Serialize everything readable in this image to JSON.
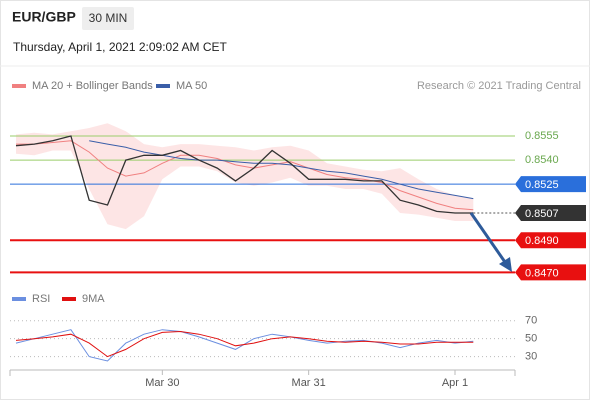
{
  "header": {
    "symbol": "EUR/GBP",
    "interval": "30 MIN",
    "timestamp": "Thursday, April 1, 2021 2:09:02 AM CET",
    "copyright": "Research © 2021 Trading Central"
  },
  "chart_data": [
    {
      "type": "line",
      "x": [
        0,
        0.125,
        0.25,
        0.375,
        0.5,
        0.625,
        0.75,
        0.875,
        1,
        1.125,
        1.25,
        1.375,
        1.5,
        1.625,
        1.75,
        1.875,
        2,
        2.125,
        2.25,
        2.375,
        2.5,
        2.625,
        2.75,
        2.875,
        3,
        3.125
      ],
      "xlim": [
        -0.041,
        3.41
      ],
      "ylim": [
        0.8459,
        0.8565
      ],
      "price": {
        "color": "#333333",
        "values": [
          0.8549,
          0.855,
          0.8552,
          0.8555,
          0.8515,
          0.8512,
          0.854,
          0.8543,
          0.8543,
          0.8546,
          0.854,
          0.8535,
          0.8527,
          0.8535,
          0.8546,
          0.8538,
          0.8528,
          0.8528,
          0.8528,
          0.8527,
          0.8527,
          0.8515,
          0.8512,
          0.8508,
          0.8507,
          0.8507
        ]
      },
      "series": [
        {
          "name": "MA 20 + Bollinger Bands",
          "color": "#f08080",
          "band_color": "#fde0e0",
          "values": [
            0.855,
            0.855,
            0.8551,
            0.8552,
            0.8545,
            0.8535,
            0.853,
            0.8532,
            0.8538,
            0.8543,
            0.8543,
            0.8541,
            0.8537,
            0.8535,
            0.8537,
            0.8539,
            0.8535,
            0.8531,
            0.8529,
            0.8528,
            0.8526,
            0.8521,
            0.8517,
            0.8513,
            0.851,
            0.8509
          ],
          "upper": [
            0.8556,
            0.8557,
            0.8556,
            0.8558,
            0.856,
            0.8563,
            0.8558,
            0.855,
            0.8548,
            0.855,
            0.855,
            0.8549,
            0.8548,
            0.8546,
            0.8548,
            0.8549,
            0.8546,
            0.8538,
            0.8536,
            0.8534,
            0.8533,
            0.8535,
            0.8528,
            0.8522,
            0.8518,
            0.8516
          ],
          "lower": [
            0.8544,
            0.8543,
            0.8546,
            0.8546,
            0.8522,
            0.85,
            0.8497,
            0.8505,
            0.8528,
            0.8536,
            0.8536,
            0.8533,
            0.8526,
            0.8524,
            0.8526,
            0.8529,
            0.8524,
            0.8524,
            0.8522,
            0.8522,
            0.8519,
            0.8507,
            0.8506,
            0.8504,
            0.8502,
            0.8502
          ]
        },
        {
          "name": "MA 50",
          "color": "#3a5ea8",
          "values": [
            null,
            null,
            null,
            null,
            0.8552,
            0.855,
            0.8548,
            0.8545,
            0.8543,
            0.8541,
            0.854,
            0.854,
            0.8539,
            0.8538,
            0.8538,
            0.8537,
            0.8535,
            0.8533,
            0.8532,
            0.853,
            0.8528,
            0.8525,
            0.8522,
            0.852,
            0.8518,
            0.8516
          ]
        }
      ],
      "levels": [
        {
          "value": 0.8555,
          "label": "0.8555",
          "color": "#9acd6a",
          "style": "text"
        },
        {
          "value": 0.854,
          "label": "0.8540",
          "color": "#9acd6a",
          "style": "text"
        },
        {
          "value": 0.8525,
          "label": "0.8525",
          "color": "#2a6fdb",
          "style": "badge"
        },
        {
          "value": 0.8507,
          "label": "0.8507",
          "color": "#333333",
          "style": "last"
        },
        {
          "value": 0.849,
          "label": "0.8490",
          "color": "#e81010",
          "style": "badge"
        },
        {
          "value": 0.847,
          "label": "0.8470",
          "color": "#e81010",
          "style": "badge"
        }
      ]
    },
    {
      "type": "line",
      "ylim": [
        15,
        82
      ],
      "yticks": [
        70,
        50,
        30
      ],
      "xticks": [
        {
          "value": 1,
          "label": "Mar 30"
        },
        {
          "value": 2,
          "label": "Mar 31"
        },
        {
          "value": 3,
          "label": "Apr 1"
        }
      ],
      "series": [
        {
          "name": "RSI",
          "color": "#6b8fe0",
          "values": [
            45,
            50,
            55,
            60,
            30,
            25,
            45,
            55,
            60,
            58,
            52,
            45,
            38,
            50,
            55,
            52,
            48,
            45,
            47,
            48,
            45,
            40,
            45,
            48,
            45,
            47
          ]
        },
        {
          "name": "9MA",
          "color": "#e01010",
          "values": [
            48,
            50,
            52,
            55,
            45,
            30,
            38,
            50,
            57,
            58,
            55,
            50,
            42,
            45,
            50,
            52,
            50,
            47,
            46,
            47,
            46,
            44,
            44,
            46,
            46,
            46
          ]
        }
      ]
    }
  ]
}
